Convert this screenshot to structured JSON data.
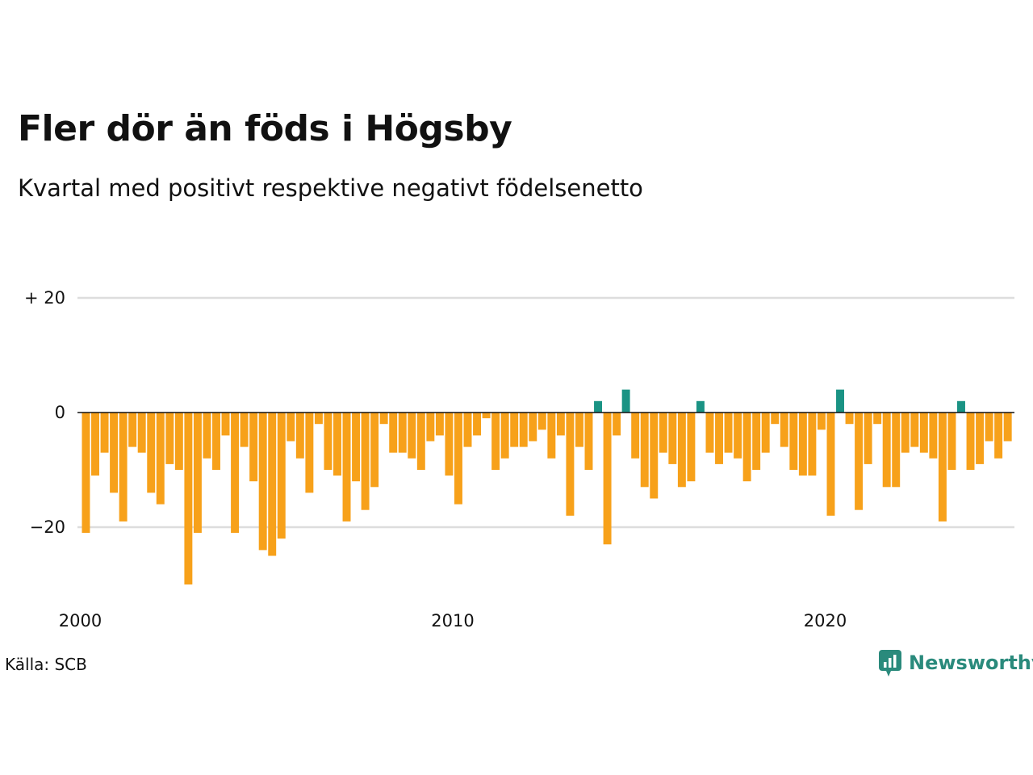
{
  "header": {
    "title": "Fler dör än föds i Högsby",
    "subtitle": "Kvartal med positivt respektive negativt födelsenetto"
  },
  "footer": {
    "source": "Källa: SCB",
    "brand": "Newsworthy"
  },
  "colors": {
    "negative": "#f7a11a",
    "positive": "#1a9384",
    "gridline": "#dddddd",
    "zero_line": "#111111",
    "brand": "#2a8a7c"
  },
  "icons": {
    "brand_logo": "newsworthy-chart-icon"
  },
  "chart_data": {
    "type": "bar",
    "title": "Fler dör än föds i Högsby",
    "subtitle": "Kvartal med positivt respektive negativt födelsenetto",
    "x_ticks": [
      {
        "year": 2000,
        "label": "2000"
      },
      {
        "year": 2010,
        "label": "2010"
      },
      {
        "year": 2020,
        "label": "2020"
      }
    ],
    "y_ticks": [
      {
        "value": 20,
        "label": "+ 20"
      },
      {
        "value": 0,
        "label": "0"
      },
      {
        "value": -20,
        "label": "−20"
      }
    ],
    "ylim": [
      -32,
      20
    ],
    "grid": true,
    "start_quarter": "2000 Q1",
    "quarters_per_year": 4,
    "values": [
      -21,
      -11,
      -7,
      -14,
      -19,
      -6,
      -7,
      -14,
      -16,
      -9,
      -10,
      -30,
      -21,
      -8,
      -10,
      -4,
      -21,
      -6,
      -12,
      -24,
      -25,
      -22,
      -5,
      -8,
      -14,
      -2,
      -10,
      -11,
      -19,
      -12,
      -17,
      -13,
      -2,
      -7,
      -7,
      -8,
      -10,
      -5,
      -4,
      -11,
      -16,
      -6,
      -4,
      -1,
      -10,
      -8,
      -6,
      -6,
      -5,
      -3,
      -8,
      -4,
      -18,
      -6,
      -10,
      2,
      -23,
      -4,
      4,
      -8,
      -13,
      -15,
      -7,
      -9,
      -13,
      -12,
      2,
      -7,
      -9,
      -7,
      -8,
      -12,
      -10,
      -7,
      -2,
      -6,
      -10,
      -11,
      -11,
      -3,
      -18,
      4,
      -2,
      -17,
      -9,
      -2,
      -13,
      -13,
      -7,
      -6,
      -7,
      -8,
      -19,
      -10,
      2,
      -10,
      -9,
      -5,
      -8,
      -5
    ]
  }
}
